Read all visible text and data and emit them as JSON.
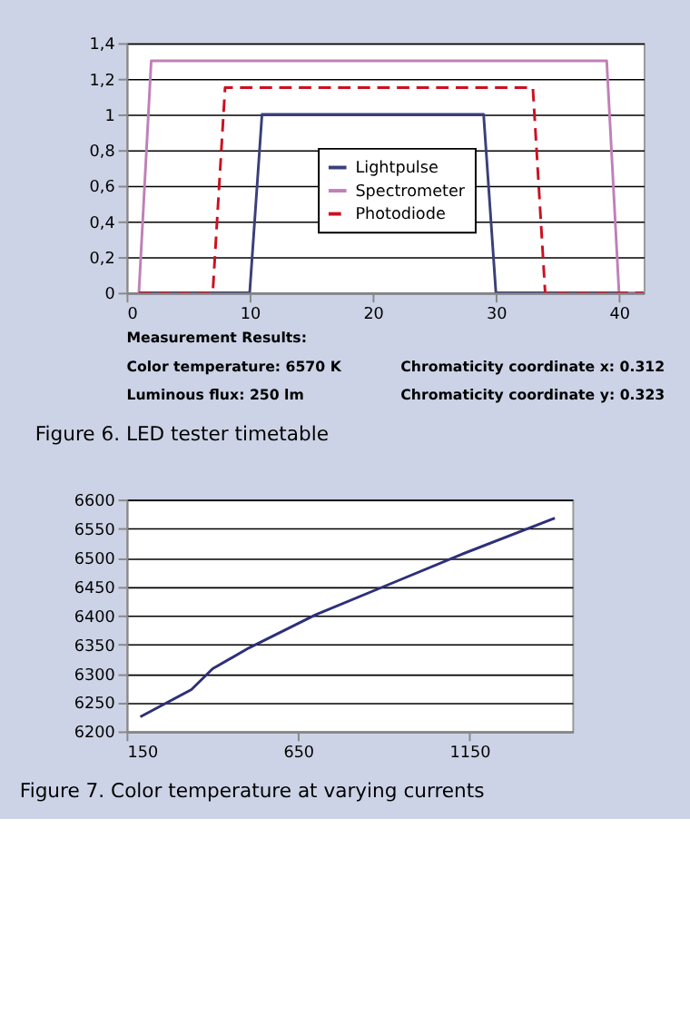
{
  "chart_data": [
    {
      "type": "line",
      "title": "Figure 6. LED tester timetable",
      "legend": "center",
      "grid": "y",
      "marker": "none",
      "xlim": [
        0,
        42
      ],
      "xticks": [
        0,
        10,
        20,
        30,
        40
      ],
      "ylim": [
        0,
        1.4
      ],
      "yticks": [
        0,
        {
          "value": 0.2,
          "label": "0,2"
        },
        {
          "value": 0.4,
          "label": "0,4"
        },
        {
          "value": 0.6,
          "label": "0,6"
        },
        {
          "value": 0.8,
          "label": "0,8"
        },
        1,
        {
          "value": 1.2,
          "label": "1,2"
        },
        {
          "value": 1.4,
          "label": "1,4"
        }
      ],
      "series": [
        {
          "name": "Lightpulse",
          "color": "#3b3f7a",
          "line_style": "solid",
          "x": [
            1,
            10,
            11,
            29,
            30,
            42
          ],
          "values": [
            0,
            0,
            1,
            1,
            0,
            0
          ]
        },
        {
          "name": "Spectrometer",
          "color": "#c080b8",
          "line_style": "solid",
          "x": [
            1,
            2,
            39,
            40,
            42
          ],
          "values": [
            0,
            1.3,
            1.3,
            0,
            0
          ]
        },
        {
          "name": "Photodiode",
          "color": "#cc1020",
          "line_style": "dashed",
          "x": [
            1,
            7,
            8,
            33,
            34,
            42
          ],
          "values": [
            0,
            0,
            1.15,
            1.15,
            0,
            0
          ]
        }
      ],
      "annotations": [
        "Measurement Results:",
        "Color temperature:  6570 K",
        "Chromaticity coordinate x:  0.312",
        "Luminous flux:  250 lm",
        "Chromaticity coordinate y:  0.323"
      ]
    },
    {
      "type": "line",
      "title": "Figure 7.  Color temperature at varying currents",
      "legend": false,
      "grid": "y",
      "marker": "none",
      "xlim": [
        150,
        1450
      ],
      "xticks": [
        150,
        650,
        1150
      ],
      "ylim": [
        6200,
        6600
      ],
      "yticks": [
        6200,
        6250,
        6300,
        6350,
        6400,
        6450,
        6500,
        6550,
        6600
      ],
      "series": [
        {
          "color": "#2e2f7a",
          "line_style": "solid",
          "x": [
            190,
            339,
            401,
            507,
            701,
            913,
            1125,
            1399
          ],
          "values": [
            6225,
            6272,
            6308,
            6344,
            6401,
            6453,
            6505,
            6568
          ]
        }
      ]
    }
  ]
}
